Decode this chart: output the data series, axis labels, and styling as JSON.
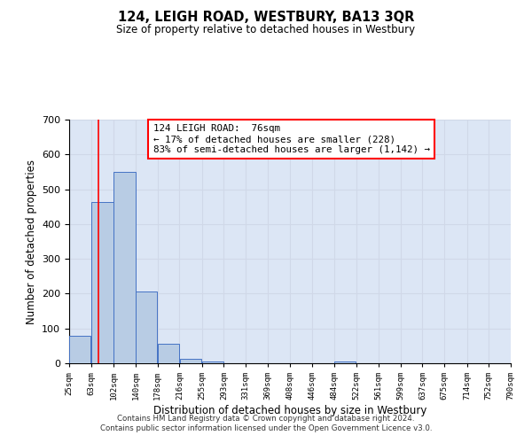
{
  "title": "124, LEIGH ROAD, WESTBURY, BA13 3QR",
  "subtitle": "Size of property relative to detached houses in Westbury",
  "xlabel": "Distribution of detached houses by size in Westbury",
  "ylabel": "Number of detached properties",
  "bar_left_edges": [
    25,
    63,
    102,
    140,
    178,
    216,
    255,
    293,
    331,
    369,
    408,
    446,
    484,
    522,
    561,
    599,
    637,
    675,
    714,
    752
  ],
  "bar_widths": [
    38,
    39,
    38,
    38,
    38,
    39,
    38,
    38,
    38,
    39,
    38,
    38,
    38,
    39,
    38,
    38,
    38,
    39,
    38,
    38
  ],
  "bar_heights": [
    80,
    463,
    550,
    205,
    57,
    14,
    5,
    0,
    0,
    0,
    0,
    0,
    5,
    0,
    0,
    0,
    0,
    0,
    0,
    0
  ],
  "bar_color": "#b8cce4",
  "bar_edge_color": "#4472c4",
  "tick_labels": [
    "25sqm",
    "63sqm",
    "102sqm",
    "140sqm",
    "178sqm",
    "216sqm",
    "255sqm",
    "293sqm",
    "331sqm",
    "369sqm",
    "408sqm",
    "446sqm",
    "484sqm",
    "522sqm",
    "561sqm",
    "599sqm",
    "637sqm",
    "675sqm",
    "714sqm",
    "752sqm",
    "790sqm"
  ],
  "ylim": [
    0,
    700
  ],
  "yticks": [
    0,
    100,
    200,
    300,
    400,
    500,
    600,
    700
  ],
  "red_line_x": 76,
  "annotation_line1": "124 LEIGH ROAD:  76sqm",
  "annotation_line2": "← 17% of detached houses are smaller (228)",
  "annotation_line3": "83% of semi-detached houses are larger (1,142) →",
  "grid_color": "#d0d8e8",
  "background_color": "#dce6f5",
  "footer_line1": "Contains HM Land Registry data © Crown copyright and database right 2024.",
  "footer_line2": "Contains public sector information licensed under the Open Government Licence v3.0."
}
